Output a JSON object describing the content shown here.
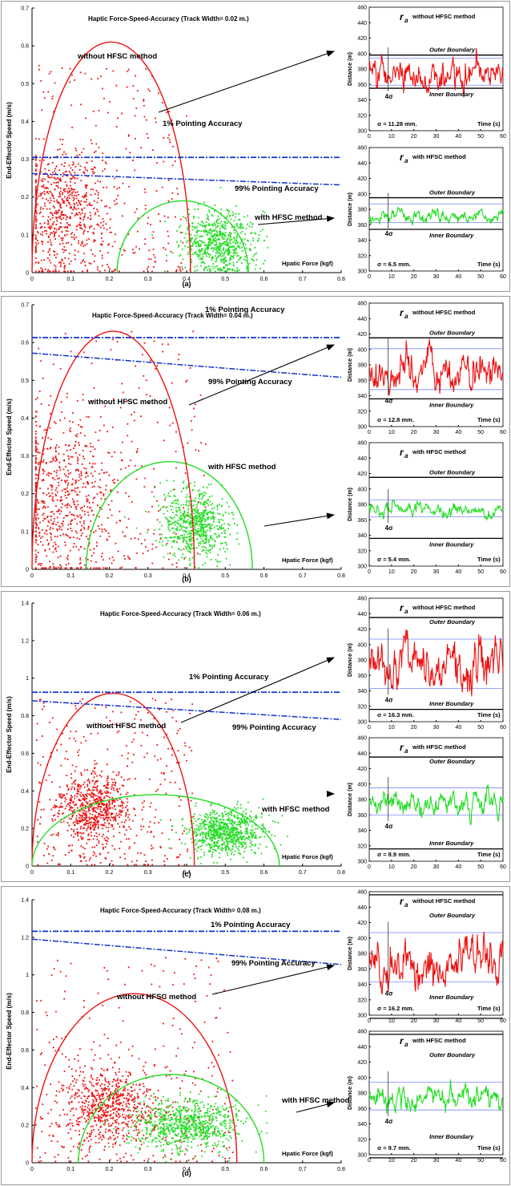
{
  "colors": {
    "red": "#ee1111",
    "green": "#22dd22",
    "blue": "#1133cc",
    "boundary_blue": "#7788ff",
    "panel_border": "#999999"
  },
  "chart_data": [
    {
      "type": "scatter",
      "panel_label": "(a)",
      "title": "Haptic Force-Speed-Accuracy (Track Width= 0.02  m.)",
      "xlabel": "Hpatic Force (kgf)",
      "ylabel": "End-Effector Speed (m/s)",
      "xlim": [
        0,
        0.8
      ],
      "ylim": [
        0,
        0.7
      ],
      "xticks": [
        "0",
        "0.1",
        "0.2",
        "0.3",
        "0.4",
        "0.5",
        "0.6",
        "0.7",
        "0.8"
      ],
      "yticks": [
        "0",
        "0.1",
        "0.2",
        "0.3",
        "0.4",
        "0.5",
        "0.6",
        "0.7"
      ],
      "annotations": {
        "acc1": "1% Pointing Accuracy",
        "acc99": "99% Pointing Accuracy",
        "without": "without HFSC method",
        "with": "with HFSC method"
      },
      "lines": {
        "acc1": [
          [
            0,
            0.305
          ],
          [
            0.8,
            0.305
          ]
        ],
        "acc99": [
          [
            0,
            0.262
          ],
          [
            0.8,
            0.232
          ]
        ]
      },
      "red_cluster": {
        "x_center": 0.08,
        "x_spread": 0.1,
        "x_range": [
          0.01,
          0.4
        ],
        "y_center": 0.17,
        "y_spread": 0.12,
        "y_max": 0.55,
        "count": 900
      },
      "green_cluster": {
        "x_center": 0.48,
        "y_center": 0.08,
        "x_spread": 0.05,
        "y_spread": 0.045,
        "count": 700
      },
      "red_envelope": {
        "x_range": [
          0.0,
          0.41
        ],
        "y_peak": 0.61
      },
      "green_envelope": {
        "x_range": [
          0.22,
          0.56
        ],
        "y_peak": 0.19
      },
      "insets": [
        {
          "title": "without HFSC method",
          "symbol": "r",
          "sub": "a",
          "color": "red",
          "ylabel": "Distance (m)",
          "xlabel": "Time (s)",
          "ylim": [
            300,
            460
          ],
          "xlim": [
            0,
            60
          ],
          "yticks": [
            "300",
            "320",
            "340",
            "360",
            "380",
            "400",
            "420",
            "440",
            "460"
          ],
          "xticks": [
            "0",
            "10",
            "20",
            "30",
            "40",
            "50",
            "60"
          ],
          "outer_label": "Outer Boundary",
          "inner_label": "Inner Boundary",
          "outer": 398,
          "inner": 355,
          "mean": 374,
          "band": [
            359,
            394
          ],
          "amplitude": 18,
          "sigma_label": "4σ",
          "sigma_text": "σ  =  11.28  mm."
        },
        {
          "title": "with HFSC method",
          "symbol": "r",
          "sub": "a",
          "color": "green",
          "ylabel": "Distance (m)",
          "xlabel": "Time (s)",
          "ylim": [
            300,
            460
          ],
          "xlim": [
            0,
            60
          ],
          "yticks": [
            "300",
            "320",
            "340",
            "360",
            "380",
            "400",
            "420",
            "440",
            "460"
          ],
          "xticks": [
            "0",
            "10",
            "20",
            "30",
            "40",
            "50",
            "60"
          ],
          "outer_label": "Outer Boundary",
          "inner_label": "Inner Boundary",
          "outer": 395,
          "inner": 354,
          "mean": 371,
          "band": [
            363,
            387
          ],
          "amplitude": 7,
          "sigma_label": "4σ",
          "sigma_text": "σ  =  6.5  mm."
        }
      ]
    },
    {
      "type": "scatter",
      "panel_label": "(b)",
      "title": "Haptic Force-Speed-Accuracy (Track Width= 0.04  m.)",
      "xlabel": "Hpatic Force (kgf)",
      "ylabel": "End-Effector Speed (m/s)",
      "xlim": [
        0,
        0.8
      ],
      "ylim": [
        0,
        0.7
      ],
      "xticks": [
        "0",
        "0.1",
        "0.2",
        "0.3",
        "0.4",
        "0.5",
        "0.6",
        "0.7",
        "0.8"
      ],
      "yticks": [
        "0",
        "0.1",
        "0.2",
        "0.3",
        "0.4",
        "0.5",
        "0.6",
        "0.7"
      ],
      "annotations": {
        "acc1": "1% Pointing Accuracy",
        "acc99": "99% Pointing Accuracy",
        "without": "without HFSC method",
        "with": "with HFSC method"
      },
      "lines": {
        "acc1": [
          [
            0,
            0.613
          ],
          [
            0.8,
            0.613
          ]
        ],
        "acc99": [
          [
            0,
            0.572
          ],
          [
            0.8,
            0.508
          ]
        ]
      },
      "red_cluster": {
        "x_center": 0.08,
        "x_spread": 0.12,
        "x_range": [
          0.01,
          0.45
        ],
        "y_center": 0.2,
        "y_spread": 0.14,
        "y_max": 0.63,
        "count": 900
      },
      "green_cluster": {
        "x_center": 0.42,
        "y_center": 0.12,
        "x_spread": 0.045,
        "y_spread": 0.045,
        "count": 700
      },
      "red_envelope": {
        "x_range": [
          0.0,
          0.42
        ],
        "y_peak": 0.63
      },
      "green_envelope": {
        "x_range": [
          0.14,
          0.57
        ],
        "y_peak": 0.285
      },
      "insets": [
        {
          "title": "without HFSC method",
          "symbol": "r",
          "sub": "a",
          "color": "red",
          "ylabel": "Distance (m)",
          "xlabel": "Time (s)",
          "ylim": [
            300,
            460
          ],
          "xlim": [
            0,
            60
          ],
          "yticks": [
            "300",
            "320",
            "340",
            "360",
            "380",
            "400",
            "420",
            "440",
            "460"
          ],
          "xticks": [
            "0",
            "10",
            "20",
            "30",
            "40",
            "50",
            "60"
          ],
          "outer_label": "Outer Boundary",
          "inner_label": "Inner Boundary",
          "outer": 415,
          "inner": 336,
          "mean": 372,
          "band": [
            348,
            401
          ],
          "amplitude": 20,
          "sigma_label": "4σ",
          "sigma_text": "σ  =  12.8  mm."
        },
        {
          "title": "with HFSC method",
          "symbol": "r",
          "sub": "a",
          "color": "green",
          "ylabel": "Distance (m)",
          "xlabel": "Time (s)",
          "ylim": [
            300,
            460
          ],
          "xlim": [
            0,
            60
          ],
          "yticks": [
            "300",
            "320",
            "340",
            "360",
            "380",
            "400",
            "420",
            "440",
            "460"
          ],
          "xticks": [
            "0",
            "10",
            "20",
            "30",
            "40",
            "50",
            "60"
          ],
          "outer_label": "Outer Boundary",
          "inner_label": "Inner Boundary",
          "outer": 415,
          "inner": 336,
          "mean": 374,
          "band": [
            364,
            386
          ],
          "amplitude": 7,
          "sigma_label": "4σ",
          "sigma_text": "σ  =  5.4     mm."
        }
      ]
    },
    {
      "type": "scatter",
      "panel_label": "(c)",
      "title": "Haptic Force-Speed-Accuracy (Track Width= 0.06  m.)",
      "xlabel": "Hpatic Force (kgf)",
      "ylabel": "End-Effector Speed (m/s)",
      "xlim": [
        0,
        0.8
      ],
      "ylim": [
        0,
        1.4
      ],
      "xticks": [
        "0",
        "0.1",
        "0.2",
        "0.3",
        "0.4",
        "0.5",
        "0.6",
        "0.7",
        "0.8"
      ],
      "yticks": [
        "0",
        "0.2",
        "0.4",
        "0.6",
        "0.8",
        "1",
        "1.2",
        "1.4"
      ],
      "annotations": {
        "acc1": "1% Pointing Accuracy",
        "acc99": "99% Pointing Accuracy",
        "without": "without HFSC method",
        "with": "with HFSC method"
      },
      "lines": {
        "acc1": [
          [
            0,
            0.925
          ],
          [
            0.8,
            0.925
          ]
        ],
        "acc99": [
          [
            0,
            0.88
          ],
          [
            0.8,
            0.78
          ]
        ]
      },
      "red_cluster": {
        "x_center": 0.16,
        "x_spread": 0.08,
        "x_range": [
          0.01,
          0.42
        ],
        "y_center": 0.3,
        "y_spread": 0.14,
        "y_max": 0.9,
        "count": 1000
      },
      "green_cluster": {
        "x_center": 0.5,
        "y_center": 0.18,
        "x_spread": 0.05,
        "y_spread": 0.06,
        "count": 800
      },
      "red_envelope": {
        "x_range": [
          0.0,
          0.42
        ],
        "y_peak": 0.92
      },
      "green_envelope": {
        "x_range": [
          0.0,
          0.64
        ],
        "y_peak": 0.38
      },
      "insets": [
        {
          "title": "without HFSC method",
          "symbol": "r",
          "sub": "a",
          "color": "red",
          "ylabel": "Distance (m)",
          "xlabel": "Time (s)",
          "ylim": [
            300,
            460
          ],
          "xlim": [
            0,
            60
          ],
          "yticks": [
            "300",
            "320",
            "340",
            "360",
            "380",
            "400",
            "420",
            "440",
            "460"
          ],
          "xticks": [
            "0",
            "10",
            "20",
            "30",
            "40",
            "50",
            "60"
          ],
          "outer_label": "Outer Boundary",
          "inner_label": "Inner Boundary",
          "outer": 435,
          "inner": 316,
          "mean": 374,
          "band": [
            343,
            407
          ],
          "amplitude": 26,
          "sigma_label": "4σ",
          "sigma_text": "σ  =  16.3     mm."
        },
        {
          "title": "with HFSC method",
          "symbol": "r",
          "sub": "a",
          "color": "green",
          "ylabel": "Distance (m)",
          "xlabel": "Time (s)",
          "ylim": [
            300,
            460
          ],
          "xlim": [
            0,
            60
          ],
          "yticks": [
            "300",
            "320",
            "340",
            "360",
            "380",
            "400",
            "420",
            "440",
            "460"
          ],
          "xticks": [
            "0",
            "10",
            "20",
            "30",
            "40",
            "50",
            "60"
          ],
          "outer_label": "Outer Boundary",
          "inner_label": "Inner Boundary",
          "outer": 435,
          "inner": 316,
          "mean": 376,
          "band": [
            360,
            395
          ],
          "amplitude": 13,
          "sigma_label": "4σ",
          "sigma_text": "σ  =  8.9       mm."
        }
      ]
    },
    {
      "type": "scatter",
      "panel_label": "(d)",
      "title": "Haptic Force-Speed-Accuracy (Track Width= 0.08  m.)",
      "xlabel": "Hpatic Force (kgf)",
      "ylabel": "End-Effector Speed (m/s)",
      "xlim": [
        0,
        0.8
      ],
      "ylim": [
        0,
        1.4
      ],
      "xticks": [
        "0",
        "0.1",
        "0.2",
        "0.3",
        "0.4",
        "0.5",
        "0.6",
        "0.7",
        "0.8"
      ],
      "yticks": [
        "0",
        "0.2",
        "0.4",
        "0.6",
        "0.8",
        "1",
        "1.2",
        "1.4"
      ],
      "annotations": {
        "acc1": "1% Pointing Accuracy",
        "acc99": "99% Pointing Accuracy",
        "without": "without HFSC method",
        "with": "with HFSC method"
      },
      "lines": {
        "acc1": [
          [
            0,
            1.232
          ],
          [
            0.8,
            1.232
          ]
        ],
        "acc99": [
          [
            0,
            1.19
          ],
          [
            0.8,
            1.055
          ]
        ]
      },
      "red_cluster": {
        "x_center": 0.2,
        "x_spread": 0.11,
        "x_range": [
          0.01,
          0.52
        ],
        "y_center": 0.3,
        "y_spread": 0.15,
        "y_max": 1.1,
        "count": 1000
      },
      "green_cluster": {
        "x_center": 0.4,
        "y_center": 0.2,
        "x_spread": 0.07,
        "y_spread": 0.07,
        "count": 800
      },
      "red_envelope": {
        "x_range": [
          0.0,
          0.53
        ],
        "y_peak": 0.9
      },
      "green_envelope": {
        "x_range": [
          0.12,
          0.6
        ],
        "y_peak": 0.47
      },
      "insets": [
        {
          "title": "without  HFSC method",
          "symbol": "r",
          "sub": "a",
          "color": "red",
          "ylabel": "Distance (m)",
          "xlabel": "Time (s)",
          "ylim": [
            300,
            460
          ],
          "xlim": [
            0,
            60
          ],
          "yticks": [
            "300",
            "320",
            "340",
            "360",
            "380",
            "400",
            "420",
            "440",
            "460"
          ],
          "xticks": [
            "0",
            "10",
            "20",
            "30",
            "40",
            "50",
            "60"
          ],
          "outer_label": "Outer Boundary",
          "inner_label": "Inner Boundary",
          "outer": 456,
          "inner": 296,
          "mean": 374,
          "band": [
            343,
            407
          ],
          "amplitude": 25,
          "sigma_label": "4σ",
          "sigma_text": "σ  =  16.2   mm."
        },
        {
          "title": "with HFSC method",
          "symbol": "r",
          "sub": "a",
          "color": "green",
          "ylabel": "Distance (m)",
          "xlabel": "Time (s)",
          "ylim": [
            300,
            460
          ],
          "xlim": [
            0,
            60
          ],
          "yticks": [
            "300",
            "320",
            "340",
            "360",
            "380",
            "400",
            "420",
            "440",
            "460"
          ],
          "xticks": [
            "0",
            "10",
            "20",
            "30",
            "40",
            "50",
            "60"
          ],
          "outer_label": "Outer Boundary",
          "inner_label": "Inner Boundary",
          "outer": 456,
          "inner": 296,
          "mean": 374,
          "band": [
            358,
            394
          ],
          "amplitude": 13,
          "sigma_label": "4σ",
          "sigma_text": "σ  =  9.7     mm."
        }
      ]
    }
  ]
}
